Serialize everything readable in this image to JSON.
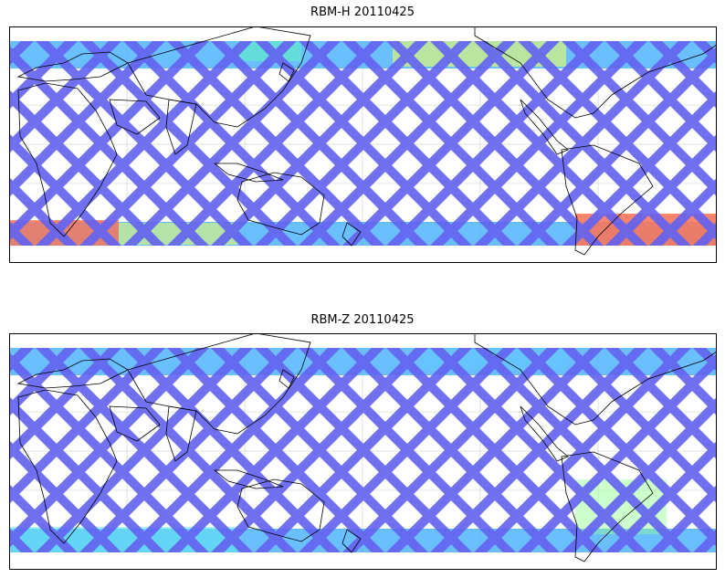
{
  "panels": [
    {
      "title": "RBM-H 20110425",
      "band_color_south": "#ff7050",
      "band_color_north": "#f0ff60",
      "body_color": "#6464f0"
    },
    {
      "title": "RBM-Z 20110425",
      "band_color_south": "#60e8f0",
      "band_color_north": "#60c8ff",
      "body_color": "#6464f0"
    }
  ],
  "colors": {
    "track": "#6464f0",
    "track_edge": "#50b4ff",
    "coast": "#000000",
    "grid": "#c8c8c8"
  }
}
